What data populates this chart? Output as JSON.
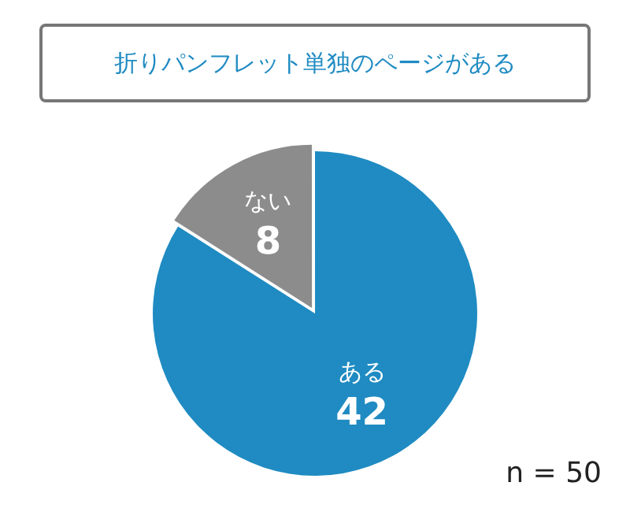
{
  "chart_data": {
    "type": "pie",
    "title": "折りパンフレット単独のページがある",
    "categories": [
      "ある",
      "ない"
    ],
    "values": [
      42,
      8
    ],
    "colors": [
      "#1f8bc2",
      "#8c8c8c"
    ],
    "data_labels": true,
    "legend": false,
    "annotations": [
      "n = 50"
    ]
  }
}
